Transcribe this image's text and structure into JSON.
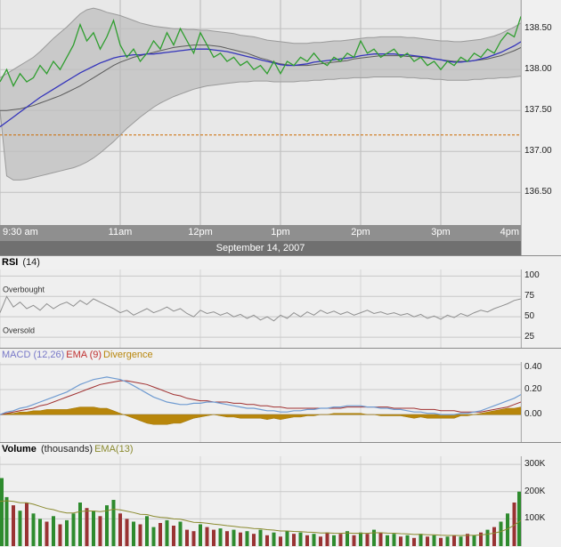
{
  "date_label": "September 14, 2007",
  "headers": {
    "rsi": {
      "bold": "RSI",
      "rest": " (14)"
    },
    "macd": {
      "macd_label": "MACD (12,26)",
      "ema_label": "EMA (9)",
      "divergence_label": "Divergence"
    },
    "volume": {
      "bold": "Volume",
      "rest": " (thousands)",
      "ema_label": "EMA(13)"
    }
  },
  "colors": {
    "price_line": "#2f9e2f",
    "ma_fast": "#3434bb",
    "ma_slow": "#5a5a5a",
    "band_fill": "#c9c9c9",
    "band_edge": "#9a9a9a",
    "prev_close": "#cc6a00",
    "macd_line": "#6f9bd1",
    "macd_signal": "#a03030",
    "divergence": "#b8860b",
    "rsi_line": "#8f8f8f",
    "volume_up": "#2e8b2e",
    "volume_down": "#993333",
    "volume_ema": "#8a8a2e",
    "macd_header": "#7878c8",
    "ema_header": "#c03030",
    "volume_ema_header": "#8a8a2e",
    "timebar_bg": "#8f8f8f",
    "datebar_bg": "#707070"
  },
  "x_axis": {
    "interval_minutes": 5,
    "session_minutes": 390,
    "ticks": [
      {
        "min": 0,
        "label": "9:30 am",
        "align": "left"
      },
      {
        "min": 90,
        "label": "11am"
      },
      {
        "min": 150,
        "label": "12pm"
      },
      {
        "min": 210,
        "label": "1pm"
      },
      {
        "min": 270,
        "label": "2pm"
      },
      {
        "min": 330,
        "label": "3pm"
      },
      {
        "min": 390,
        "label": "4pm",
        "align": "right"
      }
    ]
  },
  "chart_data": [
    {
      "id": "price",
      "type": "line",
      "title": "Intraday price with moving averages and Bollinger Bands",
      "ylim": [
        136.1,
        138.85
      ],
      "yticks": [
        136.5,
        137.0,
        137.5,
        138.0,
        138.5
      ],
      "ytick_labels": [
        "136.50",
        "137.00",
        "137.50",
        "138.00",
        "138.50"
      ],
      "prev_close": 137.2,
      "prev_close_color": "#cc6a00",
      "band_fill": "#c9c9c9",
      "series": [
        {
          "name": "bollinger-upper",
          "color": "#9a9a9a",
          "values": [
            137.9,
            137.95,
            138.0,
            138.05,
            138.1,
            138.15,
            138.22,
            138.3,
            138.38,
            138.45,
            138.52,
            138.6,
            138.68,
            138.73,
            138.75,
            138.73,
            138.7,
            138.68,
            138.66,
            138.63,
            138.6,
            138.57,
            138.55,
            138.53,
            138.52,
            138.51,
            138.5,
            138.5,
            138.49,
            138.49,
            138.48,
            138.48,
            138.47,
            138.46,
            138.45,
            138.44,
            138.42,
            138.41,
            138.4,
            138.38,
            138.36,
            138.35,
            138.34,
            138.33,
            138.32,
            138.32,
            138.32,
            138.33,
            138.33,
            138.34,
            138.35,
            138.35,
            138.36,
            138.37,
            138.38,
            138.39,
            138.39,
            138.4,
            138.4,
            138.4,
            138.4,
            138.39,
            138.39,
            138.38,
            138.37,
            138.36,
            138.35,
            138.35,
            138.34,
            138.34,
            138.35,
            138.36,
            138.37,
            138.39,
            138.41,
            138.44,
            138.48,
            138.52,
            138.57
          ]
        },
        {
          "name": "bollinger-lower",
          "color": "#9a9a9a",
          "values": [
            137.5,
            136.7,
            136.65,
            136.65,
            136.66,
            136.68,
            136.7,
            136.72,
            136.74,
            136.76,
            136.78,
            136.8,
            136.83,
            136.87,
            136.92,
            136.98,
            137.05,
            137.12,
            137.2,
            137.28,
            137.35,
            137.42,
            137.48,
            137.54,
            137.59,
            137.63,
            137.67,
            137.7,
            137.73,
            137.76,
            137.78,
            137.8,
            137.81,
            137.82,
            137.83,
            137.84,
            137.85,
            137.85,
            137.86,
            137.86,
            137.86,
            137.85,
            137.85,
            137.85,
            137.85,
            137.86,
            137.86,
            137.87,
            137.87,
            137.88,
            137.88,
            137.89,
            137.89,
            137.9,
            137.9,
            137.9,
            137.91,
            137.91,
            137.91,
            137.91,
            137.91,
            137.9,
            137.9,
            137.89,
            137.89,
            137.88,
            137.88,
            137.87,
            137.87,
            137.87,
            137.87,
            137.88,
            137.88,
            137.89,
            137.89,
            137.9,
            137.9,
            137.91,
            137.92
          ]
        },
        {
          "name": "ma-slow",
          "color": "#5a5a5a",
          "values": [
            137.5,
            137.5,
            137.51,
            137.52,
            137.54,
            137.56,
            137.59,
            137.62,
            137.65,
            137.68,
            137.72,
            137.76,
            137.8,
            137.85,
            137.9,
            137.95,
            138.0,
            138.05,
            138.09,
            138.12,
            138.15,
            138.17,
            138.19,
            138.21,
            138.23,
            138.25,
            138.27,
            138.28,
            138.29,
            138.3,
            138.3,
            138.3,
            138.29,
            138.28,
            138.26,
            138.24,
            138.22,
            138.2,
            138.17,
            138.14,
            138.12,
            138.09,
            138.07,
            138.06,
            138.05,
            138.05,
            138.05,
            138.06,
            138.07,
            138.08,
            138.09,
            138.1,
            138.11,
            138.13,
            138.14,
            138.15,
            138.16,
            138.17,
            138.17,
            138.17,
            138.17,
            138.16,
            138.16,
            138.15,
            138.14,
            138.13,
            138.12,
            138.11,
            138.1,
            138.1,
            138.1,
            138.11,
            138.12,
            138.13,
            138.15,
            138.17,
            138.2,
            138.23,
            138.27
          ]
        },
        {
          "name": "ma-fast",
          "color": "#3434bb",
          "values": [
            137.3,
            137.36,
            137.42,
            137.48,
            137.54,
            137.6,
            137.66,
            137.71,
            137.76,
            137.81,
            137.86,
            137.91,
            137.96,
            138.0,
            138.04,
            138.08,
            138.11,
            138.14,
            138.16,
            138.17,
            138.18,
            138.18,
            138.19,
            138.19,
            138.2,
            138.21,
            138.22,
            138.23,
            138.24,
            138.25,
            138.25,
            138.25,
            138.24,
            138.23,
            138.22,
            138.2,
            138.18,
            138.16,
            138.14,
            138.12,
            138.1,
            138.08,
            138.06,
            138.05,
            138.05,
            138.06,
            138.07,
            138.09,
            138.1,
            138.11,
            138.12,
            138.13,
            138.14,
            138.15,
            138.17,
            138.18,
            138.19,
            138.19,
            138.19,
            138.19,
            138.18,
            138.18,
            138.17,
            138.16,
            138.15,
            138.13,
            138.12,
            138.1,
            138.09,
            138.09,
            138.1,
            138.11,
            138.13,
            138.15,
            138.18,
            138.21,
            138.25,
            138.29,
            138.34
          ]
        },
        {
          "name": "price",
          "color": "#2f9e2f",
          "values": [
            137.85,
            138.0,
            137.8,
            137.95,
            137.85,
            137.9,
            138.05,
            137.95,
            138.1,
            138.0,
            138.15,
            138.3,
            138.55,
            138.35,
            138.45,
            138.25,
            138.4,
            138.6,
            138.3,
            138.15,
            138.25,
            138.1,
            138.2,
            138.35,
            138.25,
            138.45,
            138.3,
            138.5,
            138.35,
            138.2,
            138.45,
            138.3,
            138.15,
            138.2,
            138.1,
            138.15,
            138.05,
            138.1,
            138.0,
            138.05,
            137.95,
            138.1,
            137.95,
            138.1,
            138.05,
            138.15,
            138.1,
            138.2,
            138.1,
            138.05,
            138.15,
            138.1,
            138.2,
            138.15,
            138.35,
            138.2,
            138.25,
            138.15,
            138.2,
            138.25,
            138.15,
            138.2,
            138.1,
            138.15,
            138.05,
            138.1,
            138.0,
            138.1,
            138.05,
            138.15,
            138.1,
            138.2,
            138.15,
            138.25,
            138.2,
            138.35,
            138.45,
            138.4,
            138.65
          ]
        }
      ]
    },
    {
      "id": "rsi",
      "type": "line",
      "title": "RSI (14)",
      "label_overbought": "Overbought",
      "label_oversold": "Oversold",
      "ylim": [
        12,
        108
      ],
      "yticks": [
        25,
        50,
        75,
        100
      ],
      "ytick_labels": [
        "25",
        "50",
        "75",
        "100"
      ],
      "series": [
        {
          "name": "rsi",
          "color": "#8f8f8f",
          "values": [
            55,
            75,
            62,
            68,
            60,
            64,
            58,
            66,
            60,
            65,
            68,
            63,
            70,
            65,
            72,
            68,
            64,
            60,
            55,
            58,
            52,
            56,
            60,
            55,
            58,
            62,
            57,
            60,
            54,
            50,
            58,
            54,
            56,
            52,
            55,
            50,
            53,
            48,
            52,
            46,
            50,
            45,
            52,
            48,
            55,
            50,
            56,
            52,
            58,
            54,
            57,
            53,
            56,
            52,
            55,
            58,
            54,
            56,
            53,
            55,
            52,
            54,
            50,
            53,
            48,
            51,
            47,
            52,
            49,
            54,
            51,
            55,
            58,
            56,
            60,
            63,
            66,
            70,
            72
          ]
        }
      ]
    },
    {
      "id": "macd",
      "type": "line",
      "title": "MACD (12,26) with EMA (9) signal and Divergence histogram",
      "ylim": [
        -0.22,
        0.42
      ],
      "yticks": [
        0.0,
        0.2,
        0.4
      ],
      "ytick_labels": [
        "0.00",
        "0.20",
        "0.40"
      ],
      "divergence_color": "#b8860b",
      "series": [
        {
          "name": "macd",
          "color": "#6f9bd1",
          "values": [
            0.0,
            0.02,
            0.03,
            0.05,
            0.06,
            0.08,
            0.1,
            0.12,
            0.14,
            0.16,
            0.18,
            0.21,
            0.24,
            0.26,
            0.28,
            0.29,
            0.3,
            0.29,
            0.28,
            0.26,
            0.23,
            0.2,
            0.17,
            0.14,
            0.12,
            0.1,
            0.09,
            0.08,
            0.08,
            0.09,
            0.09,
            0.1,
            0.1,
            0.09,
            0.08,
            0.07,
            0.06,
            0.05,
            0.05,
            0.04,
            0.03,
            0.03,
            0.02,
            0.02,
            0.03,
            0.03,
            0.04,
            0.04,
            0.05,
            0.05,
            0.06,
            0.06,
            0.07,
            0.07,
            0.07,
            0.06,
            0.06,
            0.05,
            0.05,
            0.04,
            0.04,
            0.03,
            0.02,
            0.02,
            0.01,
            0.01,
            0.0,
            0.0,
            0.0,
            0.01,
            0.01,
            0.02,
            0.03,
            0.05,
            0.07,
            0.09,
            0.11,
            0.13,
            0.16
          ]
        },
        {
          "name": "signal",
          "color": "#a03030",
          "values": [
            0.0,
            0.01,
            0.02,
            0.03,
            0.04,
            0.05,
            0.07,
            0.08,
            0.1,
            0.12,
            0.14,
            0.16,
            0.18,
            0.2,
            0.22,
            0.24,
            0.25,
            0.26,
            0.27,
            0.27,
            0.26,
            0.25,
            0.24,
            0.22,
            0.2,
            0.18,
            0.16,
            0.15,
            0.13,
            0.12,
            0.11,
            0.11,
            0.1,
            0.1,
            0.1,
            0.09,
            0.09,
            0.08,
            0.08,
            0.07,
            0.07,
            0.06,
            0.06,
            0.05,
            0.05,
            0.05,
            0.05,
            0.05,
            0.05,
            0.05,
            0.05,
            0.05,
            0.06,
            0.06,
            0.06,
            0.06,
            0.06,
            0.06,
            0.06,
            0.05,
            0.05,
            0.05,
            0.05,
            0.04,
            0.04,
            0.04,
            0.03,
            0.03,
            0.03,
            0.02,
            0.02,
            0.02,
            0.02,
            0.03,
            0.04,
            0.05,
            0.06,
            0.08,
            0.1
          ]
        }
      ],
      "divergence": "macd_minus_signal"
    },
    {
      "id": "volume",
      "type": "bar",
      "title": "Volume (thousands) with EMA(13)",
      "units": "thousands",
      "ylim": [
        0,
        330
      ],
      "yticks": [
        100,
        200,
        300
      ],
      "ytick_labels": [
        "100K",
        "200K",
        "300K"
      ],
      "up_color": "#2e8b2e",
      "down_color": "#993333",
      "ema_period": 13,
      "ema_color": "#8a8a2e",
      "values": [
        250,
        180,
        150,
        130,
        160,
        120,
        100,
        90,
        110,
        80,
        95,
        120,
        160,
        140,
        130,
        110,
        150,
        170,
        120,
        100,
        90,
        80,
        110,
        70,
        85,
        95,
        75,
        90,
        60,
        55,
        80,
        70,
        60,
        65,
        55,
        60,
        50,
        55,
        45,
        60,
        40,
        50,
        35,
        55,
        45,
        50,
        40,
        45,
        35,
        50,
        40,
        45,
        55,
        40,
        50,
        45,
        60,
        50,
        40,
        45,
        35,
        40,
        30,
        45,
        35,
        40,
        30,
        35,
        40,
        35,
        45,
        40,
        50,
        60,
        70,
        90,
        120,
        160,
        200
      ]
    }
  ]
}
